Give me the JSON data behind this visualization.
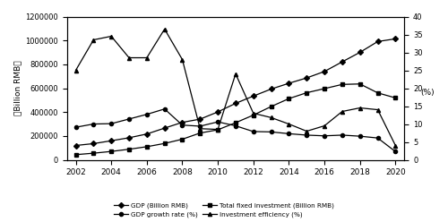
{
  "years": [
    2002,
    2003,
    2004,
    2005,
    2006,
    2007,
    2008,
    2009,
    2010,
    2011,
    2012,
    2013,
    2014,
    2015,
    2016,
    2017,
    2018,
    2019,
    2020
  ],
  "gdp": [
    120333,
    135823,
    159878,
    184937,
    216314,
    265810,
    314045,
    340903,
    401513,
    473104,
    534123,
    592963,
    641281,
    685993,
    740061,
    820754,
    900310,
    990865,
    1013567
  ],
  "total_fixed_investment": [
    43500,
    55567,
    70477,
    88773,
    109998,
    137324,
    172828,
    224599,
    251684,
    311022,
    374694,
    446294,
    512761,
    562000,
    596501,
    631684,
    635636,
    560900,
    518961
  ],
  "gdp_growth_rate": [
    9.1,
    10.0,
    10.1,
    11.4,
    12.7,
    14.2,
    9.7,
    9.4,
    10.6,
    9.5,
    7.9,
    7.8,
    7.3,
    6.9,
    6.7,
    6.9,
    6.6,
    6.1,
    2.3
  ],
  "investment_efficiency": [
    25.0,
    33.5,
    34.5,
    28.5,
    28.5,
    36.5,
    28.0,
    8.7,
    8.5,
    24.0,
    13.0,
    11.8,
    10.0,
    8.0,
    9.5,
    13.5,
    14.5,
    14.0,
    4.0
  ],
  "left_ylim": [
    0,
    1200000
  ],
  "right_ylim": [
    0,
    40
  ],
  "left_yticks": [
    0,
    200000,
    400000,
    600000,
    800000,
    1000000,
    1200000
  ],
  "right_yticks": [
    0,
    5,
    10,
    15,
    20,
    25,
    30,
    35,
    40
  ],
  "left_yticklabels": [
    "0",
    "200000",
    "400000",
    "600000",
    "800000",
    "1000000",
    "1200000"
  ],
  "ylabel_left": "（Billion RMB）",
  "ylabel_right": "(%)",
  "legend": [
    "GDP (Billion RMB)",
    "Total fixed investment (Billion RMB)",
    "GDP growth rate (%)",
    "Investment efficiency (%)"
  ],
  "marker_gdp": "D",
  "marker_tfi": "s",
  "marker_growth": "o",
  "marker_efficiency": "^",
  "line_color": "#000000",
  "figsize": [
    5.0,
    2.48
  ],
  "dpi": 100
}
